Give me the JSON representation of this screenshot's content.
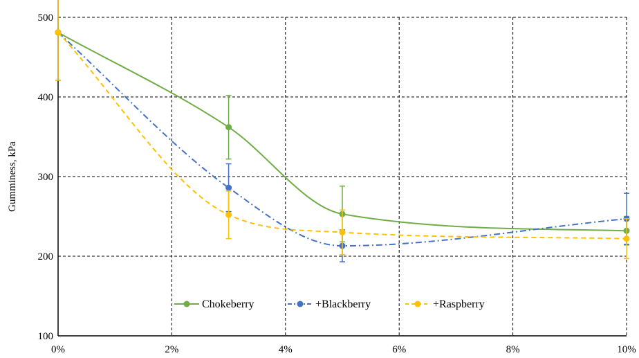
{
  "chart_data": {
    "type": "line",
    "ylabel": "Gumminess, kPa",
    "xlabel": "",
    "title": "",
    "x": [
      0,
      3,
      5,
      10
    ],
    "x_tick_values": [
      0,
      2,
      4,
      6,
      8,
      10
    ],
    "x_tick_labels": [
      "0%",
      "2%",
      "4%",
      "6%",
      "8%",
      "10%"
    ],
    "y_ticks": [
      100,
      200,
      300,
      400,
      500
    ],
    "xlim": [
      0,
      10
    ],
    "ylim": [
      100,
      500
    ],
    "grid": true,
    "legend_position": "lower-center",
    "series": [
      {
        "name": "Chokeberry",
        "color": "#70ad47",
        "dash": "solid",
        "values": [
          481,
          362,
          253,
          232
        ],
        "errors": [
          60,
          40,
          35,
          18
        ]
      },
      {
        "name": "+Blackberry",
        "color": "#4472c4",
        "dash": "dashdot",
        "values": [
          481,
          286,
          213,
          247
        ],
        "errors": [
          60,
          30,
          20,
          32
        ]
      },
      {
        "name": "+Raspberry",
        "color": "#ffc000",
        "dash": "dash",
        "values": [
          481,
          252,
          230,
          222
        ],
        "errors": [
          60,
          30,
          28,
          25
        ]
      }
    ]
  }
}
